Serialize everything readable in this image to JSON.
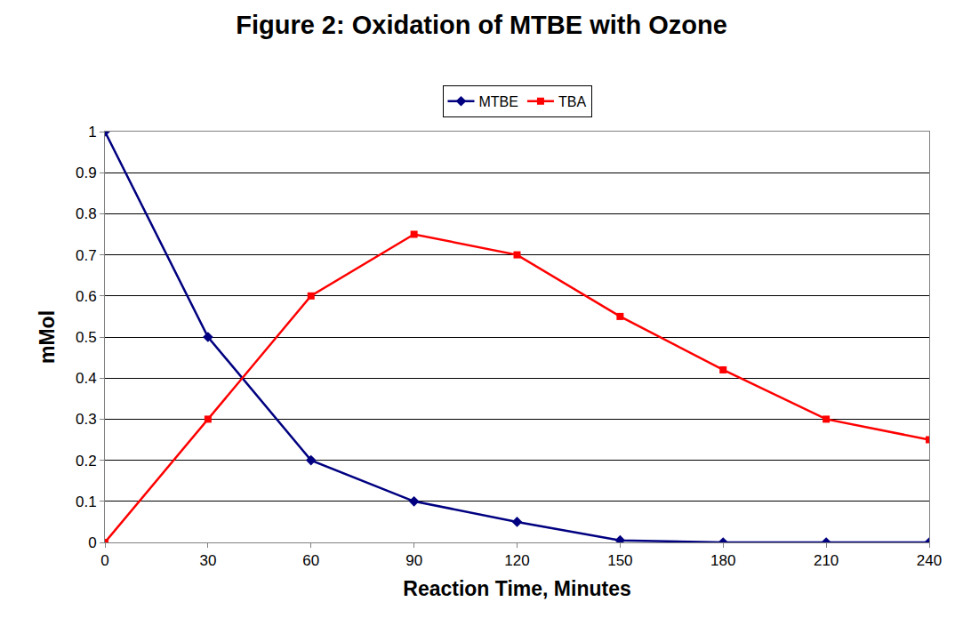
{
  "chart_data": {
    "type": "line",
    "title": "Figure 2: Oxidation of MTBE with Ozone",
    "x_label": "Reaction Time, Minutes",
    "y_label": "mMol",
    "x": [
      0,
      30,
      60,
      90,
      120,
      150,
      180,
      210,
      240
    ],
    "series": [
      {
        "name": "MTBE",
        "color": "#000080",
        "marker": "diamond",
        "line_style": "solid",
        "values": [
          1,
          0.5,
          0.2,
          0.1,
          0.05,
          0.005,
          0,
          0,
          0
        ]
      },
      {
        "name": "TBA",
        "color": "#ff0000",
        "marker": "square",
        "line_style": "solid",
        "values": [
          0,
          0.3,
          0.6,
          0.75,
          0.7,
          0.55,
          0.42,
          0.3,
          0.25
        ]
      }
    ],
    "xlim": [
      0,
      240
    ],
    "xticks": [
      0,
      30,
      60,
      90,
      120,
      150,
      180,
      210,
      240
    ],
    "ylim": [
      0,
      1
    ],
    "yticks": [
      0,
      0.1,
      0.2,
      0.3,
      0.4,
      0.5,
      0.6,
      0.7,
      0.8,
      0.9,
      1
    ],
    "grid": true,
    "legend": "top"
  }
}
